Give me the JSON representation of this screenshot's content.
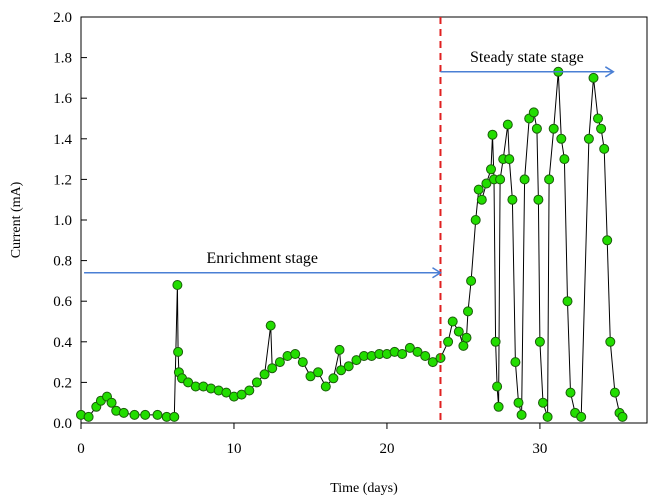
{
  "chart_data": {
    "type": "line",
    "title": "",
    "xlabel": "Time (days)",
    "ylabel": "Current (mA)",
    "xlim": [
      0,
      37
    ],
    "ylim": [
      0,
      2.0
    ],
    "x_ticks": [
      0,
      10,
      20,
      30
    ],
    "y_ticks": [
      0.0,
      0.2,
      0.4,
      0.6,
      0.8,
      1.0,
      1.2,
      1.4,
      1.6,
      1.8,
      2.0
    ],
    "y_tick_labels": [
      "0.0",
      "0.2",
      "0.4",
      "0.6",
      "0.8",
      "1.0",
      "1.2",
      "1.4",
      "1.6",
      "1.8",
      "2.0"
    ],
    "grid": false,
    "marker_color": "#22dd00",
    "marker_edge_color": "#1a5c0a",
    "line_color": "#000000",
    "stage_divider": {
      "x": 23.5,
      "color": "#e02020"
    },
    "arrow_color": "#4a7fd4",
    "annotations": [
      {
        "text": "Enrichment stage",
        "x_from": 0.2,
        "x_to": 23.5,
        "y": 0.74
      },
      {
        "text": "Steady state stage",
        "x_from": 23.5,
        "x_to": 34.8,
        "y": 1.73
      }
    ],
    "series": [
      {
        "points": [
          [
            0.0,
            0.04
          ],
          [
            0.5,
            0.03
          ],
          [
            1.0,
            0.08
          ],
          [
            1.3,
            0.11
          ],
          [
            1.7,
            0.13
          ],
          [
            2.0,
            0.1
          ],
          [
            2.3,
            0.06
          ],
          [
            2.8,
            0.05
          ],
          [
            3.5,
            0.04
          ],
          [
            4.2,
            0.04
          ],
          [
            5.0,
            0.04
          ],
          [
            5.6,
            0.03
          ],
          [
            6.1,
            0.03
          ],
          [
            6.3,
            0.68
          ],
          [
            6.35,
            0.35
          ],
          [
            6.4,
            0.25
          ],
          [
            6.6,
            0.22
          ],
          [
            7.0,
            0.2
          ],
          [
            7.5,
            0.18
          ],
          [
            8.0,
            0.18
          ],
          [
            8.5,
            0.17
          ],
          [
            9.0,
            0.16
          ],
          [
            9.5,
            0.15
          ],
          [
            10.0,
            0.13
          ],
          [
            10.5,
            0.14
          ],
          [
            11.0,
            0.16
          ],
          [
            11.5,
            0.2
          ],
          [
            12.0,
            0.24
          ],
          [
            12.4,
            0.48
          ],
          [
            12.5,
            0.27
          ],
          [
            13.0,
            0.3
          ],
          [
            13.5,
            0.33
          ],
          [
            14.0,
            0.34
          ],
          [
            14.5,
            0.3
          ],
          [
            15.0,
            0.23
          ],
          [
            15.5,
            0.25
          ],
          [
            16.0,
            0.18
          ],
          [
            16.5,
            0.22
          ],
          [
            16.9,
            0.36
          ],
          [
            17.0,
            0.26
          ],
          [
            17.5,
            0.28
          ],
          [
            18.0,
            0.31
          ],
          [
            18.5,
            0.33
          ],
          [
            19.0,
            0.33
          ],
          [
            19.5,
            0.34
          ],
          [
            20.0,
            0.34
          ],
          [
            20.5,
            0.35
          ],
          [
            21.0,
            0.34
          ],
          [
            21.5,
            0.37
          ],
          [
            22.0,
            0.35
          ],
          [
            22.5,
            0.33
          ],
          [
            23.0,
            0.3
          ],
          [
            23.5,
            0.32
          ],
          [
            24.0,
            0.4
          ],
          [
            24.3,
            0.5
          ],
          [
            24.7,
            0.45
          ],
          [
            25.0,
            0.38
          ],
          [
            25.2,
            0.42
          ],
          [
            25.3,
            0.55
          ],
          [
            25.5,
            0.7
          ],
          [
            25.8,
            1.0
          ],
          [
            26.0,
            1.15
          ],
          [
            26.2,
            1.1
          ],
          [
            26.5,
            1.18
          ],
          [
            26.8,
            1.25
          ],
          [
            26.9,
            1.42
          ],
          [
            27.0,
            1.2
          ],
          [
            27.1,
            0.4
          ],
          [
            27.2,
            0.18
          ],
          [
            27.3,
            0.08
          ],
          [
            27.4,
            1.2
          ],
          [
            27.6,
            1.3
          ],
          [
            27.9,
            1.47
          ],
          [
            28.0,
            1.3
          ],
          [
            28.2,
            1.1
          ],
          [
            28.4,
            0.3
          ],
          [
            28.6,
            0.1
          ],
          [
            28.8,
            0.04
          ],
          [
            29.0,
            1.2
          ],
          [
            29.3,
            1.5
          ],
          [
            29.6,
            1.53
          ],
          [
            29.8,
            1.45
          ],
          [
            29.9,
            1.1
          ],
          [
            30.0,
            0.4
          ],
          [
            30.2,
            0.1
          ],
          [
            30.5,
            0.03
          ],
          [
            30.6,
            1.2
          ],
          [
            30.9,
            1.45
          ],
          [
            31.2,
            1.73
          ],
          [
            31.4,
            1.4
          ],
          [
            31.6,
            1.3
          ],
          [
            31.8,
            0.6
          ],
          [
            32.0,
            0.15
          ],
          [
            32.3,
            0.05
          ],
          [
            32.7,
            0.03
          ],
          [
            33.2,
            1.4
          ],
          [
            33.5,
            1.7
          ],
          [
            33.8,
            1.5
          ],
          [
            34.0,
            1.45
          ],
          [
            34.2,
            1.35
          ],
          [
            34.4,
            0.9
          ],
          [
            34.6,
            0.4
          ],
          [
            34.9,
            0.15
          ],
          [
            35.2,
            0.05
          ],
          [
            35.4,
            0.03
          ]
        ]
      }
    ]
  }
}
